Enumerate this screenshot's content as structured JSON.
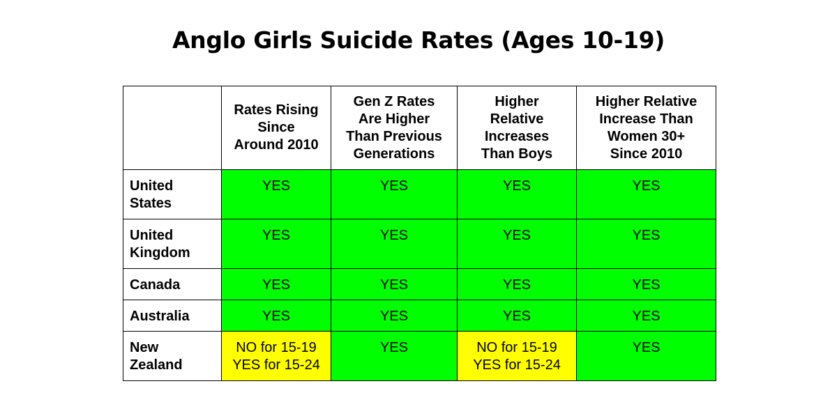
{
  "chart_data": {
    "type": "table",
    "title": "Anglo Girls Suicide Rates (Ages 10-19)",
    "corner": "",
    "columns": [
      "Rates Rising\nSince\nAround 2010",
      "Gen Z Rates\nAre Higher\nThan Previous\nGenerations",
      "Higher\nRelative\nIncreases\nThan Boys",
      "Higher Relative\nIncrease Than\nWomen 30+\nSince 2010"
    ],
    "rows": [
      {
        "label": "United\nStates",
        "cells": [
          "YES",
          "YES",
          "YES",
          "YES"
        ],
        "colors": [
          "#00ff00",
          "#00ff00",
          "#00ff00",
          "#00ff00"
        ]
      },
      {
        "label": "United\nKingdom",
        "cells": [
          "YES",
          "YES",
          "YES",
          "YES"
        ],
        "colors": [
          "#00ff00",
          "#00ff00",
          "#00ff00",
          "#00ff00"
        ]
      },
      {
        "label": "Canada",
        "cells": [
          "YES",
          "YES",
          "YES",
          "YES"
        ],
        "colors": [
          "#00ff00",
          "#00ff00",
          "#00ff00",
          "#00ff00"
        ]
      },
      {
        "label": "Australia",
        "cells": [
          "YES",
          "YES",
          "YES",
          "YES"
        ],
        "colors": [
          "#00ff00",
          "#00ff00",
          "#00ff00",
          "#00ff00"
        ]
      },
      {
        "label": "New\nZealand",
        "cells": [
          "NO for 15-19\nYES for 15-24",
          "YES",
          "NO for 15-19\nYES for 15-24",
          "YES"
        ],
        "colors": [
          "#ffff00",
          "#00ff00",
          "#ffff00",
          "#00ff00"
        ]
      }
    ]
  }
}
